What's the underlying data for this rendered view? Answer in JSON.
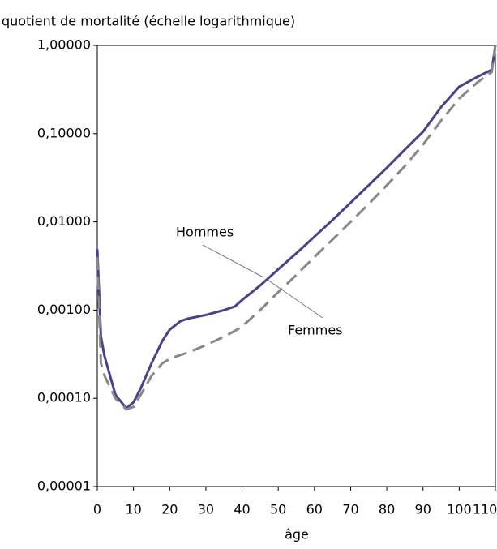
{
  "chart_data": {
    "type": "line",
    "y_label": "quotient de mortalité (échelle logarithmique)",
    "x_label": "âge",
    "x": [
      0,
      1,
      2,
      5,
      8,
      10,
      12,
      15,
      18,
      20,
      23,
      25,
      30,
      35,
      38,
      40,
      45,
      50,
      55,
      60,
      65,
      70,
      75,
      80,
      85,
      90,
      95,
      100,
      105,
      109,
      110
    ],
    "series": [
      {
        "name": "Hommes",
        "color": "#4b3f8f",
        "dash": false,
        "values": [
          0.0049,
          0.0005,
          0.0003,
          0.00011,
          7.7e-05,
          9e-05,
          0.00013,
          0.00025,
          0.00045,
          0.0006,
          0.00075,
          0.0008,
          0.00088,
          0.001,
          0.0011,
          0.0013,
          0.0019,
          0.0029,
          0.0044,
          0.0068,
          0.0105,
          0.0165,
          0.026,
          0.041,
          0.066,
          0.105,
          0.2,
          0.34,
          0.44,
          0.53,
          1.0
        ]
      },
      {
        "name": "Femmes",
        "color": "#888888",
        "dash": true,
        "values": [
          0.004,
          0.00025,
          0.00018,
          0.0001,
          7.5e-05,
          8e-05,
          0.00011,
          0.00018,
          0.00025,
          0.00028,
          0.00031,
          0.00033,
          0.0004,
          0.0005,
          0.00058,
          0.00065,
          0.001,
          0.0016,
          0.0025,
          0.004,
          0.0063,
          0.01,
          0.016,
          0.026,
          0.043,
          0.075,
          0.14,
          0.25,
          0.38,
          0.5,
          1.0
        ]
      }
    ],
    "xlim": [
      0,
      110
    ],
    "xticks": [
      0,
      10,
      20,
      30,
      40,
      50,
      60,
      70,
      80,
      90,
      100,
      110
    ],
    "ylim": [
      1e-05,
      1
    ],
    "log_y": true,
    "yticks": [
      {
        "value": 1e-05,
        "label": "0,00001"
      },
      {
        "value": 0.0001,
        "label": "0,00010"
      },
      {
        "value": 0.001,
        "label": "0,00100"
      },
      {
        "value": 0.01,
        "label": "0,01000"
      },
      {
        "value": 0.1,
        "label": "0,10000"
      },
      {
        "value": 1,
        "label": "1,00000"
      }
    ],
    "legend": "annotations"
  }
}
